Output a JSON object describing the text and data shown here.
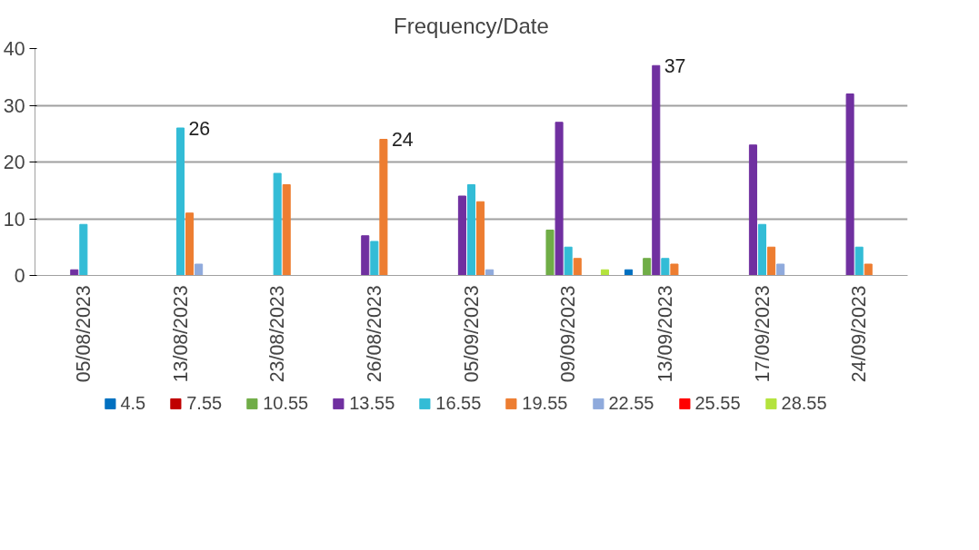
{
  "chart_data": {
    "type": "bar",
    "title": "Frequency/Date",
    "categories": [
      "05/08/2023",
      "13/08/2023",
      "23/08/2023",
      "26/08/2023",
      "05/09/2023",
      "09/09/2023",
      "13/09/2023",
      "17/09/2023",
      "24/09/2023"
    ],
    "series": [
      {
        "name": "4.5",
        "color": "#0070c0",
        "values": [
          0,
          0,
          0,
          0,
          0,
          0,
          1,
          0,
          0
        ]
      },
      {
        "name": "7.55",
        "color": "#c00000",
        "values": [
          0,
          0,
          0,
          0,
          0,
          0,
          0,
          0,
          0
        ]
      },
      {
        "name": "10.55",
        "color": "#70ad47",
        "values": [
          0,
          0,
          0,
          0,
          0,
          8,
          3,
          0,
          0
        ]
      },
      {
        "name": "13.55",
        "color": "#7030a0",
        "values": [
          1,
          0,
          0,
          7,
          14,
          27,
          37,
          23,
          32
        ],
        "value_labels": [
          null,
          null,
          null,
          null,
          null,
          null,
          "37",
          null,
          null
        ]
      },
      {
        "name": "16.55",
        "color": "#33bcd6",
        "values": [
          9,
          26,
          18,
          6,
          16,
          5,
          3,
          9,
          5
        ],
        "value_labels": [
          null,
          "26",
          null,
          null,
          null,
          null,
          null,
          null,
          null
        ]
      },
      {
        "name": "19.55",
        "color": "#ed7d31",
        "values": [
          0,
          11,
          16,
          24,
          13,
          3,
          2,
          5,
          2
        ],
        "value_labels": [
          null,
          null,
          null,
          "24",
          null,
          null,
          null,
          null,
          null
        ]
      },
      {
        "name": "22.55",
        "color": "#8faadc",
        "values": [
          0,
          2,
          0,
          0,
          1,
          0,
          0,
          2,
          0
        ]
      },
      {
        "name": "25.55",
        "color": "#ff0000",
        "values": [
          0,
          0,
          0,
          0,
          0,
          0,
          0,
          0,
          0
        ]
      },
      {
        "name": "28.55",
        "color": "#b4e33d",
        "values": [
          0,
          0,
          0,
          0,
          0,
          1,
          0,
          0,
          0
        ]
      }
    ],
    "ylim": [
      0,
      40
    ],
    "yticks": [
      0,
      10,
      20,
      30,
      40
    ],
    "grid": "y",
    "legend": "bottom"
  }
}
